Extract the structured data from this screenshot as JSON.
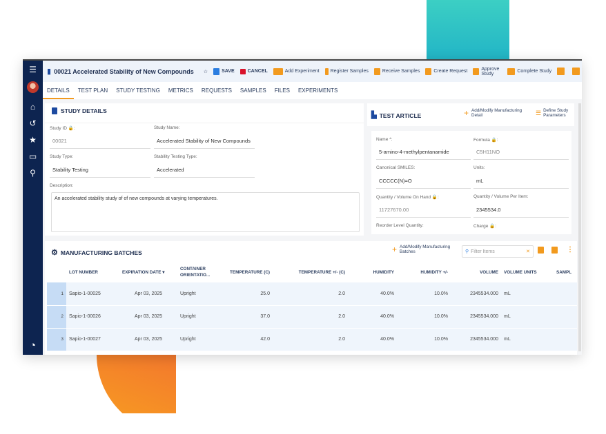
{
  "header": {
    "title": "00021 Accelerated Stability of New Compounds",
    "save": "SAVE",
    "cancel": "CANCEL",
    "actions": [
      "Add Experiment",
      "Register Samples",
      "Receive Samples",
      "Create Request",
      "Approve Study",
      "Complete Study"
    ]
  },
  "tabs": [
    "DETAILS",
    "TEST PLAN",
    "STUDY TESTING",
    "METRICS",
    "REQUESTS",
    "SAMPLES",
    "FILES",
    "EXPERIMENTS"
  ],
  "study": {
    "title": "STUDY DETAILS",
    "id_label": "Study ID 🔒:",
    "id": "00021",
    "name_label": "Study Name:",
    "name": "Accelerated Stability of New Compounds",
    "type_label": "Study Type:",
    "type": "Stability Testing",
    "stab_label": "Stability Testing Type:",
    "stab": "Accelerated",
    "desc_label": "Description:",
    "desc": "An accelerated stability study of of new compounds at varying temperatures."
  },
  "article": {
    "title": "TEST ARTICLE",
    "add": "Add/Modify Manufacturing Detail",
    "define": "Define Study Parameters",
    "name_label": "Name *:",
    "name": "5-amino-4-methylpentanamide",
    "formula_label": "Formula 🔒:",
    "formula": "C5H11NO",
    "smiles_label": "Canonical SMILES:",
    "smiles": "CCCCC(N)=O",
    "units_label": "Units:",
    "units": "mL",
    "qoh_label": "Quantity / Volume On Hand 🔒:",
    "qoh": "11727670.00",
    "qpi_label": "Quantity / Volume Per Item:",
    "qpi": "2345534.0",
    "reorder_label": "Reorder Level Quantity:",
    "charge_label": "Charge 🔒:"
  },
  "batches": {
    "title": "MANUFACTURING BATCHES",
    "add": "Add/Modify Manufacturing Batches",
    "filter_placeholder": "Filter Items",
    "columns": [
      "LOT NUMBER",
      "EXPIRATION DATE ▾",
      "CONTAINER ORIENTATIO...",
      "TEMPERATURE (C)",
      "TEMPERATURE +/- (C)",
      "HUMIDITY",
      "HUMIDITY +/-",
      "VOLUME",
      "VOLUME UNITS",
      "SAMPL"
    ],
    "rows": [
      [
        "1",
        "Sapio-1-00025",
        "Apr 03, 2025",
        "Upright",
        "25.0",
        "2.0",
        "40.0%",
        "10.0%",
        "2345534.000",
        "mL"
      ],
      [
        "2",
        "Sapio-1-00026",
        "Apr 03, 2025",
        "Upright",
        "37.0",
        "2.0",
        "40.0%",
        "10.0%",
        "2345534.000",
        "mL"
      ],
      [
        "3",
        "Sapio-1-00027",
        "Apr 03, 2025",
        "Upright",
        "42.0",
        "2.0",
        "40.0%",
        "10.0%",
        "2345534.000",
        "mL"
      ]
    ]
  },
  "colors": {
    "accent": "#f29a1e",
    "navy": "#0d2450",
    "teal": "#2cc2c5"
  }
}
